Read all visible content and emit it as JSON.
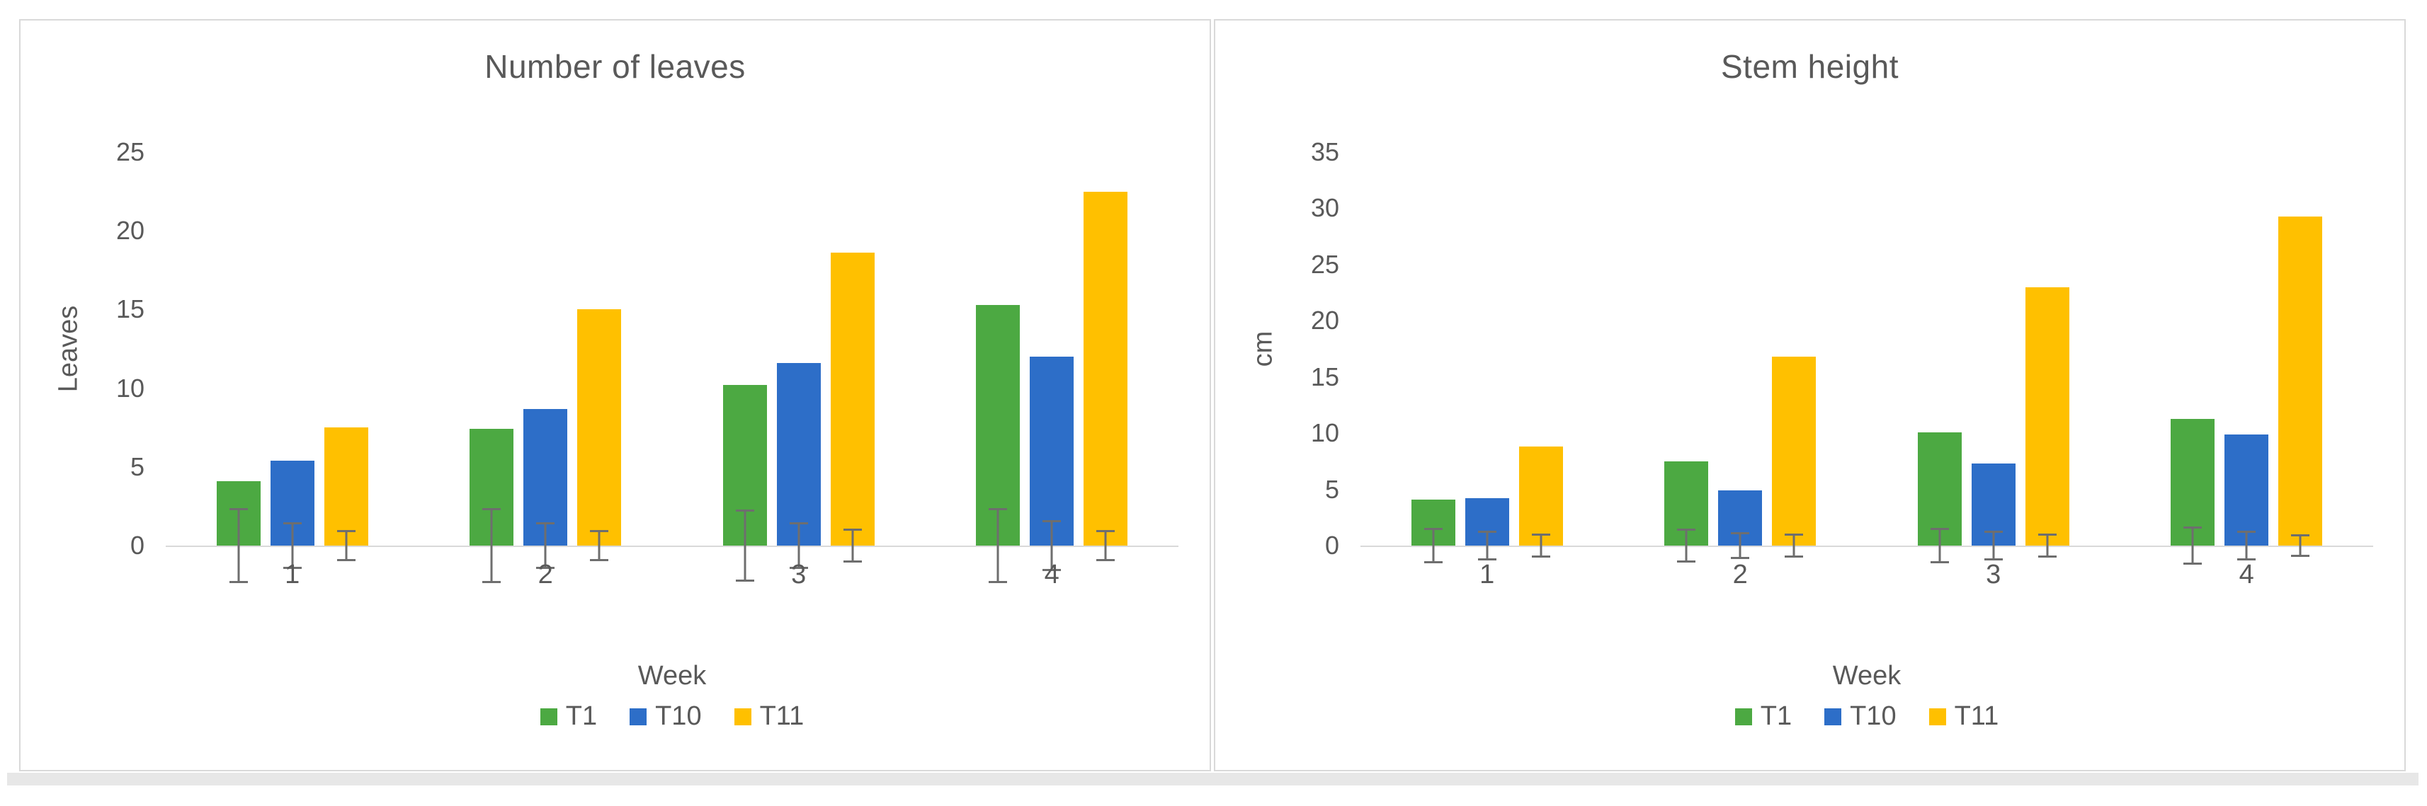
{
  "styles": {
    "text_color": "#595959",
    "axis_line_color": "#d9d9d9",
    "error_bar_color": "#6e6e6e",
    "panel_border": "#d9d9d9",
    "background": "#ffffff",
    "bottom_strip": "#e7e7e7"
  },
  "chart_data": [
    {
      "type": "bar",
      "title": "Number of leaves",
      "xlabel": "Week",
      "ylabel": "Leaves",
      "ylim": [
        0,
        25
      ],
      "ytick_step": 5,
      "yticks": [
        0,
        5,
        10,
        15,
        20,
        25
      ],
      "grid": false,
      "legend_position": "bottom",
      "error_bars": true,
      "categories": [
        "1",
        "2",
        "3",
        "4"
      ],
      "series": [
        {
          "name": "T1",
          "color": "#4CA942",
          "values": [
            4.1,
            7.4,
            10.2,
            15.3
          ],
          "errors": [
            2.4,
            2.4,
            2.3,
            2.4
          ]
        },
        {
          "name": "T10",
          "color": "#2D6EC8",
          "values": [
            5.4,
            8.7,
            11.6,
            12.0
          ],
          "errors": [
            1.5,
            1.5,
            1.5,
            1.6
          ]
        },
        {
          "name": "T11",
          "color": "#FFC000",
          "values": [
            7.5,
            15.0,
            18.6,
            22.5
          ],
          "errors": [
            1.0,
            1.0,
            1.1,
            1.0
          ]
        }
      ]
    },
    {
      "type": "bar",
      "title": "Stem height",
      "xlabel": "Week",
      "ylabel": "cm",
      "ylim": [
        0,
        35
      ],
      "ytick_step": 5,
      "yticks": [
        0,
        5,
        10,
        15,
        20,
        25,
        30,
        35
      ],
      "grid": false,
      "legend_position": "bottom",
      "error_bars": true,
      "categories": [
        "1",
        "2",
        "3",
        "4"
      ],
      "series": [
        {
          "name": "T1",
          "color": "#4CA942",
          "values": [
            4.1,
            7.5,
            10.1,
            11.3
          ],
          "errors": [
            1.6,
            1.5,
            1.6,
            1.7
          ]
        },
        {
          "name": "T10",
          "color": "#2D6EC8",
          "values": [
            4.2,
            4.9,
            7.3,
            9.9
          ],
          "errors": [
            1.3,
            1.2,
            1.3,
            1.3
          ]
        },
        {
          "name": "T11",
          "color": "#FFC000",
          "values": [
            8.8,
            16.8,
            23.0,
            29.3
          ],
          "errors": [
            1.1,
            1.1,
            1.1,
            1.0
          ]
        }
      ]
    }
  ]
}
